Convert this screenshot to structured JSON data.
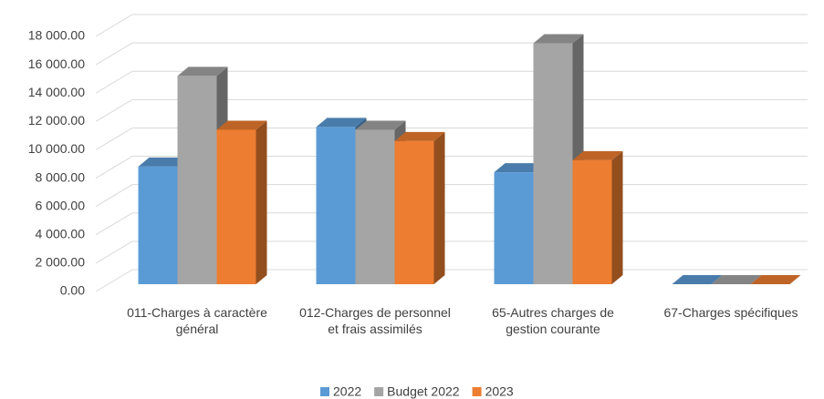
{
  "chart_data": {
    "type": "bar3d",
    "categories": [
      "011-Charges à caractère général",
      "012-Charges de personnel et frais assimilés",
      "65-Autres charges de gestion courante",
      "67-Charges spécifiques"
    ],
    "series": [
      {
        "name": "2022",
        "color": "#5b9bd5",
        "values": [
          8300,
          11100,
          7900,
          0
        ]
      },
      {
        "name": "Budget 2022",
        "color": "#a5a5a5",
        "values": [
          14700,
          10900,
          17000,
          0
        ]
      },
      {
        "name": "2023",
        "color": "#ed7d31",
        "values": [
          10900,
          10100,
          8750,
          0
        ]
      }
    ],
    "ylim": [
      0,
      18000
    ],
    "yticks": [
      {
        "value": 0,
        "label": "0.00"
      },
      {
        "value": 2000,
        "label": "2 000.00"
      },
      {
        "value": 4000,
        "label": "4 000.00"
      },
      {
        "value": 6000,
        "label": "6 000.00"
      },
      {
        "value": 8000,
        "label": "8 000.00"
      },
      {
        "value": 10000,
        "label": "10 000.00"
      },
      {
        "value": 12000,
        "label": "12 000.00"
      },
      {
        "value": 14000,
        "label": "14 000.00"
      },
      {
        "value": 16000,
        "label": "16 000.00"
      },
      {
        "value": 18000,
        "label": "18 000.00"
      }
    ],
    "grid": true,
    "legend": "bottom"
  }
}
